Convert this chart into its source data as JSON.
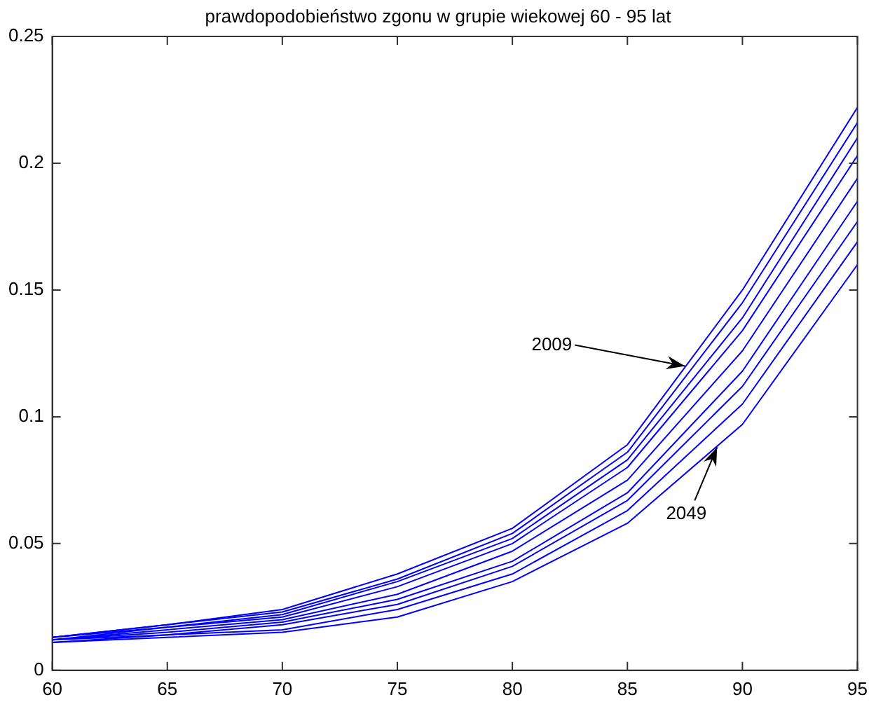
{
  "chart_data": {
    "type": "line",
    "title": "prawdopodobieństwo zgonu w grupie wiekowej 60 - 95 lat",
    "x": [
      60,
      65,
      70,
      75,
      80,
      85,
      90,
      95
    ],
    "series": [
      {
        "color": "#0000ff",
        "values": [
          0.013,
          0.018,
          0.024,
          0.038,
          0.056,
          0.089,
          0.15,
          0.222
        ]
      },
      {
        "color": "#0000ff",
        "values": [
          0.013,
          0.018,
          0.023,
          0.036,
          0.054,
          0.086,
          0.145,
          0.216
        ]
      },
      {
        "color": "#0000ff",
        "values": [
          0.013,
          0.017,
          0.022,
          0.035,
          0.052,
          0.083,
          0.139,
          0.21
        ]
      },
      {
        "color": "#0000ff",
        "values": [
          0.012,
          0.017,
          0.021,
          0.033,
          0.05,
          0.08,
          0.134,
          0.203
        ]
      },
      {
        "color": "#0000ff",
        "values": [
          0.012,
          0.016,
          0.02,
          0.03,
          0.047,
          0.075,
          0.126,
          0.194
        ]
      },
      {
        "color": "#0000ff",
        "values": [
          0.012,
          0.015,
          0.019,
          0.028,
          0.043,
          0.07,
          0.118,
          0.185
        ]
      },
      {
        "color": "#0000ff",
        "values": [
          0.012,
          0.014,
          0.018,
          0.026,
          0.041,
          0.067,
          0.112,
          0.177
        ]
      },
      {
        "color": "#0000ff",
        "values": [
          0.011,
          0.014,
          0.016,
          0.024,
          0.038,
          0.063,
          0.105,
          0.169
        ]
      },
      {
        "color": "#0000ff",
        "values": [
          0.011,
          0.013,
          0.015,
          0.021,
          0.035,
          0.058,
          0.097,
          0.16
        ]
      }
    ],
    "annotations": [
      {
        "text": "2009",
        "x": 87.5,
        "y": 0.12
      },
      {
        "text": "2049",
        "x": 88.9,
        "y": 0.088
      }
    ],
    "xlim": [
      60,
      95
    ],
    "xticks": [
      60,
      65,
      70,
      75,
      80,
      85,
      90,
      95
    ],
    "ylim": [
      0,
      0.25
    ],
    "yticks": [
      0,
      0.05,
      0.1,
      0.15,
      0.2,
      0.25
    ],
    "grid": false,
    "legend": false,
    "marker": "none",
    "line_style": "solid"
  }
}
